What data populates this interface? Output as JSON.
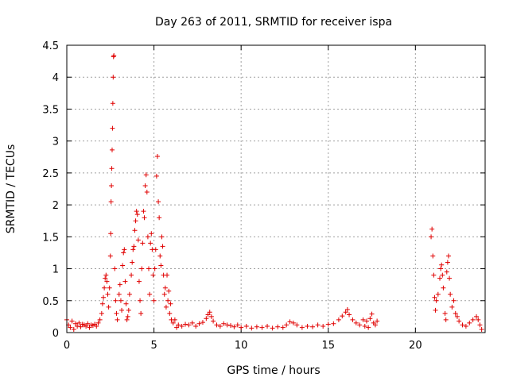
{
  "chart_data": {
    "type": "scatter",
    "title": "Day 263 of 2011, SRMTID for receiver ispa",
    "xlabel": "GPS time / hours",
    "ylabel": "SRMTID / TECUs",
    "xlim": [
      0,
      24
    ],
    "ylim": [
      0,
      4.5
    ],
    "x_ticks": [
      0,
      5,
      10,
      15,
      20
    ],
    "x_tick_labels": [
      "0",
      "5",
      "10",
      "15",
      "20"
    ],
    "y_ticks": [
      0,
      0.5,
      1,
      1.5,
      2,
      2.5,
      3,
      3.5,
      4,
      4.5
    ],
    "y_tick_labels": [
      "0",
      "0.5",
      "1",
      "1.5",
      "2",
      "2.5",
      "3",
      "3.5",
      "4",
      "4.5"
    ],
    "grid": true,
    "marker": "plus",
    "color": "#e00000",
    "series": [
      {
        "name": "SRMTID",
        "points": [
          [
            0.0,
            0.2
          ],
          [
            0.1,
            0.12
          ],
          [
            0.2,
            0.08
          ],
          [
            0.3,
            0.18
          ],
          [
            0.4,
            0.05
          ],
          [
            0.5,
            0.14
          ],
          [
            0.6,
            0.1
          ],
          [
            0.7,
            0.15
          ],
          [
            0.8,
            0.09
          ],
          [
            0.9,
            0.13
          ],
          [
            1.0,
            0.12
          ],
          [
            1.1,
            0.1
          ],
          [
            1.2,
            0.14
          ],
          [
            1.3,
            0.08
          ],
          [
            1.4,
            0.12
          ],
          [
            1.5,
            0.11
          ],
          [
            1.6,
            0.13
          ],
          [
            1.7,
            0.1
          ],
          [
            1.8,
            0.15
          ],
          [
            1.9,
            0.2
          ],
          [
            2.0,
            0.3
          ],
          [
            2.05,
            0.45
          ],
          [
            2.1,
            0.55
          ],
          [
            2.15,
            0.7
          ],
          [
            2.2,
            0.85
          ],
          [
            2.25,
            0.9
          ],
          [
            2.3,
            0.8
          ],
          [
            2.35,
            0.6
          ],
          [
            2.4,
            0.4
          ],
          [
            2.45,
            0.7
          ],
          [
            2.5,
            1.2
          ],
          [
            2.52,
            1.55
          ],
          [
            2.54,
            2.05
          ],
          [
            2.56,
            2.3
          ],
          [
            2.58,
            2.57
          ],
          [
            2.6,
            2.86
          ],
          [
            2.62,
            3.2
          ],
          [
            2.64,
            3.59
          ],
          [
            2.66,
            4.0
          ],
          [
            2.68,
            4.32
          ],
          [
            2.7,
            4.34
          ],
          [
            2.75,
            1.0
          ],
          [
            2.8,
            0.5
          ],
          [
            2.85,
            0.3
          ],
          [
            2.9,
            0.2
          ],
          [
            3.0,
            0.6
          ],
          [
            3.05,
            0.75
          ],
          [
            3.1,
            0.5
          ],
          [
            3.15,
            0.35
          ],
          [
            3.2,
            1.05
          ],
          [
            3.25,
            1.25
          ],
          [
            3.3,
            1.3
          ],
          [
            3.35,
            0.8
          ],
          [
            3.4,
            0.45
          ],
          [
            3.45,
            0.2
          ],
          [
            3.5,
            0.25
          ],
          [
            3.55,
            0.35
          ],
          [
            3.6,
            0.6
          ],
          [
            3.7,
            0.9
          ],
          [
            3.75,
            1.1
          ],
          [
            3.8,
            1.3
          ],
          [
            3.85,
            1.35
          ],
          [
            3.9,
            1.6
          ],
          [
            3.95,
            1.75
          ],
          [
            4.0,
            1.9
          ],
          [
            4.05,
            1.85
          ],
          [
            4.1,
            1.45
          ],
          [
            4.15,
            0.8
          ],
          [
            4.2,
            0.5
          ],
          [
            4.25,
            0.3
          ],
          [
            4.3,
            1.0
          ],
          [
            4.35,
            1.4
          ],
          [
            4.4,
            1.9
          ],
          [
            4.45,
            1.8
          ],
          [
            4.5,
            2.3
          ],
          [
            4.55,
            2.47
          ],
          [
            4.6,
            2.2
          ],
          [
            4.65,
            1.5
          ],
          [
            4.7,
            1.0
          ],
          [
            4.75,
            0.6
          ],
          [
            4.8,
            1.4
          ],
          [
            4.85,
            1.55
          ],
          [
            4.9,
            1.3
          ],
          [
            4.95,
            0.9
          ],
          [
            5.0,
            0.5
          ],
          [
            5.05,
            1.0
          ],
          [
            5.1,
            1.3
          ],
          [
            5.15,
            2.45
          ],
          [
            5.2,
            2.76
          ],
          [
            5.25,
            2.05
          ],
          [
            5.3,
            1.8
          ],
          [
            5.35,
            1.2
          ],
          [
            5.4,
            1.05
          ],
          [
            5.45,
            1.5
          ],
          [
            5.5,
            1.35
          ],
          [
            5.55,
            0.9
          ],
          [
            5.6,
            0.6
          ],
          [
            5.65,
            0.7
          ],
          [
            5.7,
            0.4
          ],
          [
            5.75,
            0.9
          ],
          [
            5.8,
            0.5
          ],
          [
            5.85,
            0.65
          ],
          [
            5.9,
            0.3
          ],
          [
            5.95,
            0.45
          ],
          [
            6.0,
            0.2
          ],
          [
            6.1,
            0.15
          ],
          [
            6.2,
            0.2
          ],
          [
            6.3,
            0.08
          ],
          [
            6.4,
            0.12
          ],
          [
            6.6,
            0.1
          ],
          [
            6.8,
            0.13
          ],
          [
            7.0,
            0.12
          ],
          [
            7.2,
            0.15
          ],
          [
            7.4,
            0.1
          ],
          [
            7.6,
            0.14
          ],
          [
            7.8,
            0.16
          ],
          [
            8.0,
            0.22
          ],
          [
            8.1,
            0.28
          ],
          [
            8.2,
            0.32
          ],
          [
            8.3,
            0.25
          ],
          [
            8.4,
            0.18
          ],
          [
            8.6,
            0.12
          ],
          [
            8.8,
            0.1
          ],
          [
            9.0,
            0.14
          ],
          [
            9.2,
            0.12
          ],
          [
            9.4,
            0.11
          ],
          [
            9.6,
            0.09
          ],
          [
            9.8,
            0.12
          ],
          [
            10.0,
            0.08
          ],
          [
            10.3,
            0.1
          ],
          [
            10.6,
            0.07
          ],
          [
            10.9,
            0.09
          ],
          [
            11.2,
            0.08
          ],
          [
            11.5,
            0.1
          ],
          [
            11.8,
            0.07
          ],
          [
            12.1,
            0.09
          ],
          [
            12.4,
            0.08
          ],
          [
            12.6,
            0.12
          ],
          [
            12.8,
            0.17
          ],
          [
            13.0,
            0.15
          ],
          [
            13.2,
            0.12
          ],
          [
            13.5,
            0.08
          ],
          [
            13.8,
            0.1
          ],
          [
            14.1,
            0.09
          ],
          [
            14.4,
            0.12
          ],
          [
            14.7,
            0.1
          ],
          [
            15.0,
            0.13
          ],
          [
            15.3,
            0.14
          ],
          [
            15.6,
            0.2
          ],
          [
            15.8,
            0.26
          ],
          [
            16.0,
            0.32
          ],
          [
            16.1,
            0.36
          ],
          [
            16.2,
            0.28
          ],
          [
            16.4,
            0.2
          ],
          [
            16.6,
            0.15
          ],
          [
            16.8,
            0.12
          ],
          [
            17.0,
            0.2
          ],
          [
            17.1,
            0.1
          ],
          [
            17.2,
            0.18
          ],
          [
            17.3,
            0.08
          ],
          [
            17.4,
            0.22
          ],
          [
            17.5,
            0.29
          ],
          [
            17.6,
            0.15
          ],
          [
            17.7,
            0.12
          ],
          [
            17.8,
            0.18
          ],
          [
            20.9,
            1.5
          ],
          [
            20.95,
            1.62
          ],
          [
            21.0,
            1.2
          ],
          [
            21.05,
            0.9
          ],
          [
            21.1,
            0.55
          ],
          [
            21.15,
            0.35
          ],
          [
            21.2,
            0.5
          ],
          [
            21.3,
            0.6
          ],
          [
            21.4,
            0.85
          ],
          [
            21.45,
            1.0
          ],
          [
            21.5,
            1.06
          ],
          [
            21.55,
            0.9
          ],
          [
            21.6,
            0.7
          ],
          [
            21.7,
            0.3
          ],
          [
            21.75,
            0.2
          ],
          [
            21.8,
            0.95
          ],
          [
            21.85,
            1.1
          ],
          [
            21.9,
            1.2
          ],
          [
            21.95,
            0.85
          ],
          [
            22.0,
            0.6
          ],
          [
            22.1,
            0.4
          ],
          [
            22.2,
            0.5
          ],
          [
            22.3,
            0.3
          ],
          [
            22.4,
            0.25
          ],
          [
            22.5,
            0.18
          ],
          [
            22.7,
            0.12
          ],
          [
            22.9,
            0.1
          ],
          [
            23.1,
            0.15
          ],
          [
            23.3,
            0.2
          ],
          [
            23.5,
            0.25
          ],
          [
            23.6,
            0.2
          ],
          [
            23.7,
            0.12
          ],
          [
            23.8,
            0.05
          ]
        ]
      }
    ]
  }
}
